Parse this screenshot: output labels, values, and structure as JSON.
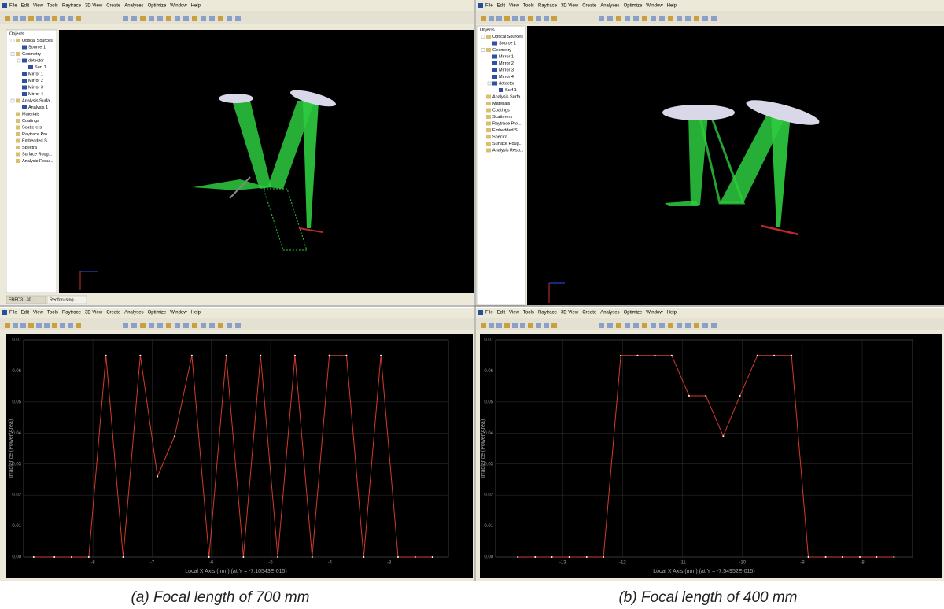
{
  "menus": [
    "File",
    "Edit",
    "View",
    "Tools",
    "Raytrace",
    "3D View",
    "Create",
    "Analyses",
    "Optimize",
    "Window",
    "Help"
  ],
  "views": [
    {
      "tree_title": "Objects",
      "tree": [
        {
          "label": "Optical Sources",
          "children": [
            {
              "label": "Source 1"
            }
          ]
        },
        {
          "label": "Geometry",
          "children": [
            {
              "label": "detector",
              "children": [
                {
                  "label": "Surf 1"
                }
              ]
            },
            {
              "label": "Mirror 1"
            },
            {
              "label": "Mirror 2"
            },
            {
              "label": "Mirror 3"
            },
            {
              "label": "Mirror 4"
            }
          ]
        },
        {
          "label": "Analysis Surfa...",
          "children": [
            {
              "label": "Analysis 1"
            }
          ]
        },
        {
          "label": "Materials"
        },
        {
          "label": "Coatings"
        },
        {
          "label": "Scatterers"
        },
        {
          "label": "Raytrace Pro..."
        },
        {
          "label": "Embedded S..."
        },
        {
          "label": "Spectra"
        },
        {
          "label": "Surface Roug..."
        },
        {
          "label": "Analysis Resu..."
        }
      ],
      "tabs": [
        "FRED3...30...",
        "Redfocusing..."
      ]
    },
    {
      "tree_title": "Objects",
      "tree": [
        {
          "label": "Optical Sources",
          "children": [
            {
              "label": "Source 1"
            }
          ]
        },
        {
          "label": "Geometry",
          "children": [
            {
              "label": "Mirror 1"
            },
            {
              "label": "Mirror 2"
            },
            {
              "label": "Mirror 3"
            },
            {
              "label": "Mirror 4"
            },
            {
              "label": "detector",
              "children": [
                {
                  "label": "Surf 1"
                }
              ]
            }
          ]
        },
        {
          "label": "Analysis Surfa..."
        },
        {
          "label": "Materials"
        },
        {
          "label": "Coatings"
        },
        {
          "label": "Scatterers"
        },
        {
          "label": "Raytrace Pro..."
        },
        {
          "label": "Embedded S..."
        },
        {
          "label": "Spectra"
        },
        {
          "label": "Surface Roug..."
        },
        {
          "label": "Analysis Resu..."
        }
      ]
    }
  ],
  "chart_data": [
    {
      "type": "line",
      "x_label": "Local X Axis (mm)  (at Y = -7.10543E-015)",
      "y_label": "Irradiance (Power/Area)",
      "color": "#d23b2a",
      "grid": true,
      "xlim": [
        -9.17,
        -2.0
      ],
      "xticks": [
        -8,
        -7,
        -6,
        -5,
        -4,
        -3
      ],
      "ylim": [
        0,
        0.07
      ],
      "yticks": [
        {
          "value": 0,
          "label": "0.00"
        },
        {
          "value": 0.01,
          "label": "0.01"
        },
        {
          "value": 0.02,
          "label": "0.02"
        },
        {
          "value": 0.03,
          "label": "0.03"
        },
        {
          "value": 0.04,
          "label": "0.04"
        },
        {
          "value": 0.05,
          "label": "0.05"
        },
        {
          "value": 0.06,
          "label": "0.06"
        },
        {
          "value": 0.07,
          "label": "0.07"
        }
      ],
      "x": [
        -9.0,
        -8.65,
        -8.36,
        -8.07,
        -7.78,
        -7.49,
        -7.2,
        -6.91,
        -6.62,
        -6.33,
        -6.04,
        -5.75,
        -5.46,
        -5.17,
        -4.88,
        -4.59,
        -4.3,
        -4.01,
        -3.72,
        -3.43,
        -3.14,
        -2.85,
        -2.56,
        -2.27
      ],
      "values": [
        0,
        0,
        0,
        0,
        0.065,
        0,
        0.065,
        0.026,
        0.039,
        0.065,
        0,
        0.065,
        0,
        0.065,
        0,
        0.065,
        0,
        0.065,
        0.065,
        0,
        0.065,
        0,
        0,
        0
      ],
      "caption": "(a) Focal length of 700 mm"
    },
    {
      "type": "line",
      "x_label": "Local X Axis (mm)  (at Y = -7.54952E-015)",
      "y_label": "Irradiance (Power/Area)",
      "color": "#d23b2a",
      "grid": true,
      "xlim": [
        -14.12,
        -7.16
      ],
      "xticks": [
        -13,
        -12,
        -11,
        -10,
        -9,
        -8
      ],
      "ylim": [
        0,
        0.07
      ],
      "yticks": [
        {
          "value": 0,
          "label": "0.00"
        },
        {
          "value": 0.01,
          "label": "0.01"
        },
        {
          "value": 0.02,
          "label": "0.02"
        },
        {
          "value": 0.03,
          "label": "0.03"
        },
        {
          "value": 0.04,
          "label": "0.04"
        },
        {
          "value": 0.05,
          "label": "0.05"
        },
        {
          "value": 0.06,
          "label": "0.06"
        },
        {
          "value": 0.07,
          "label": "0.07"
        }
      ],
      "x": [
        -13.75,
        -13.46,
        -13.18,
        -12.89,
        -12.6,
        -12.32,
        -12.03,
        -11.75,
        -11.46,
        -11.18,
        -10.89,
        -10.61,
        -10.32,
        -10.04,
        -9.75,
        -9.47,
        -9.18,
        -8.9,
        -8.61,
        -8.33,
        -8.04,
        -7.76,
        -7.47
      ],
      "values": [
        0,
        0,
        0,
        0,
        0,
        0,
        0.065,
        0.065,
        0.065,
        0.065,
        0.052,
        0.052,
        0.039,
        0.052,
        0.065,
        0.065,
        0.065,
        0,
        0,
        0,
        0,
        0,
        0
      ],
      "caption": "(b) Focal length of 400 mm"
    }
  ]
}
